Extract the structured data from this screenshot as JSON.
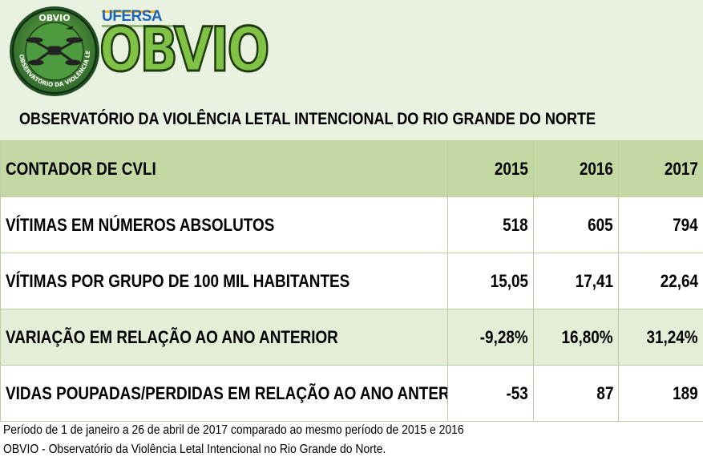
{
  "header": {
    "seal": {
      "top_text": "OBVIO",
      "ring_text": "OBSERVATÓRIO DA VIOLÊNCIA LETAL INTENCIONAL",
      "icon": "drone-icon"
    },
    "university": "UFERSA",
    "logo_text": "OBVIO",
    "title": "OBSERVATÓRIO DA VIOLÊNCIA LETAL INTENCIONAL DO RIO GRANDE DO NORTE"
  },
  "table": {
    "columns": [
      "CONTADOR DE CVLI",
      "2015",
      "2016",
      "2017"
    ],
    "rows": [
      {
        "label": "VÍTIMAS EM NÚMEROS ABSOLUTOS",
        "values": [
          "518",
          "605",
          "794"
        ]
      },
      {
        "label": "VÍTIMAS POR GRUPO DE 100 MIL HABITANTES",
        "values": [
          "15,05",
          "17,41",
          "22,64"
        ]
      },
      {
        "label": "VARIAÇÃO EM RELAÇÃO AO ANO ANTERIOR",
        "values": [
          "-9,28%",
          "16,80%",
          "31,24%"
        ]
      },
      {
        "label": "VIDAS POUPADAS/PERDIDAS EM RELAÇÃO AO ANO ANTERIOR",
        "values": [
          "-53",
          "87",
          "189"
        ]
      }
    ]
  },
  "footer": {
    "line1": "Período de 1 de janeiro a 26 de abril de 2017 comparado ao mesmo período de 2015 e 2016",
    "line2": "OBVIO - Observatório da Violência Letal Intencional no Rio Grande do Norte."
  },
  "colors": {
    "header_bg": "#e9f1e0",
    "head_row": "#c3d8a3",
    "band_row": "#e4eed7",
    "logo_green": "#7fc246",
    "ufersa_blue": "#1d63b8"
  }
}
